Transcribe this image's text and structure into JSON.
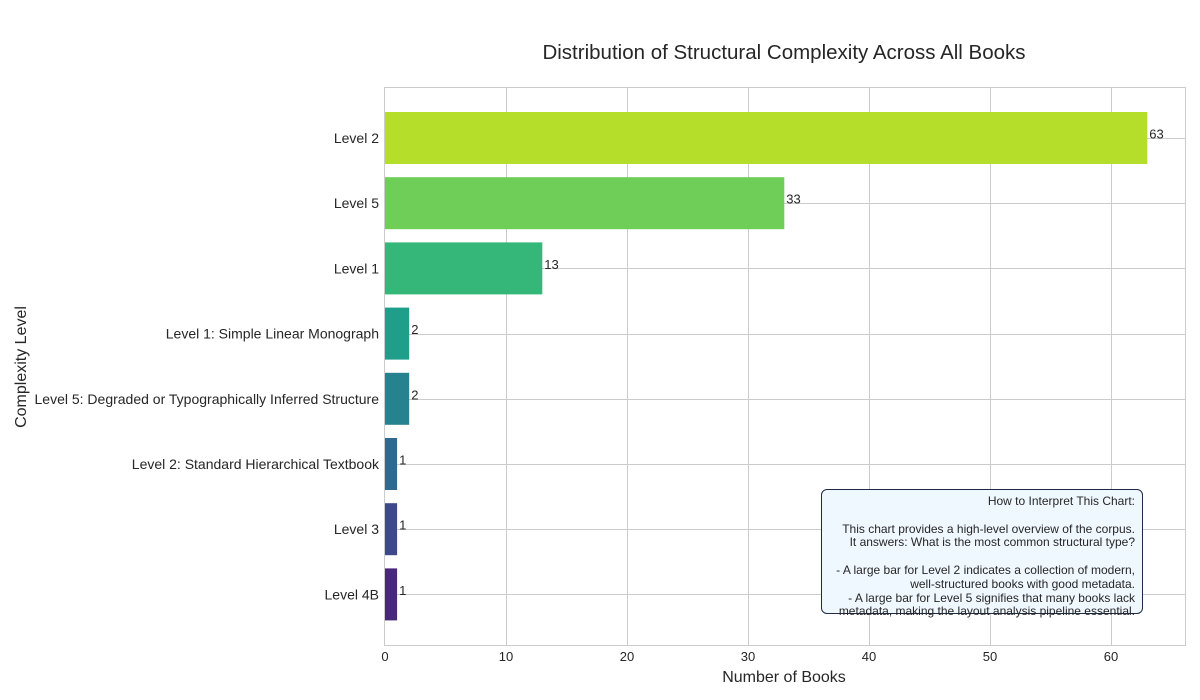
{
  "chart_data": {
    "type": "bar",
    "orientation": "horizontal",
    "title": "Distribution of Structural Complexity Across All Books",
    "xlabel": "Number of Books",
    "ylabel": "Complexity Level",
    "xlim": [
      0,
      66.15
    ],
    "xticks": [
      0,
      10,
      20,
      30,
      40,
      50,
      60
    ],
    "grid": true,
    "categories": [
      "Level 2",
      "Level 5",
      "Level 1",
      "Level 1: Simple Linear Monograph",
      "Level 5: Degraded or Typographically Inferred Structure",
      "Level 2: Standard Hierarchical Textbook",
      "Level 3",
      "Level 4B"
    ],
    "values": [
      63,
      33,
      13,
      2,
      2,
      1,
      1,
      1
    ],
    "colors": [
      "#b5de2b",
      "#6ece58",
      "#35b779",
      "#1f9e89",
      "#26828e",
      "#31688e",
      "#3e4989",
      "#482878"
    ],
    "annotation_box": {
      "placement": "bottom-right",
      "lines": [
        "How to Interpret This Chart:",
        "",
        "This chart provides a high-level overview of the corpus.",
        "It answers: What is the most common structural type?",
        "",
        "- A large bar for Level 2 indicates a collection of modern,",
        "well-structured books with good metadata.",
        "- A large bar for Level 5 signifies that many books lack",
        "metadata, making the layout analysis pipeline essential."
      ]
    }
  }
}
